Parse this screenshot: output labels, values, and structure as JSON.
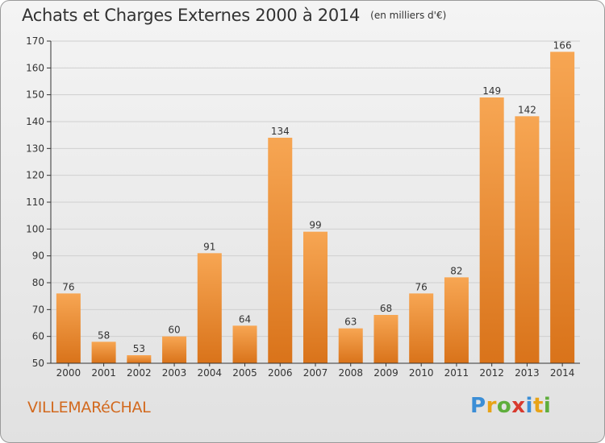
{
  "header": {
    "title": "Achats et Charges Externes 2000 à 2014",
    "subtitle": "(en milliers d'€)"
  },
  "footer": {
    "commune": "VILLEMARéCHAL",
    "brand": "Proxiti"
  },
  "colors": {
    "bar_top": "#f7a653",
    "bar_bottom": "#d9731a",
    "grid": "#cfcfcf",
    "axis": "#333333",
    "commune_text": "#d2691e"
  },
  "chart_data": {
    "type": "bar",
    "title": "Achats et Charges Externes 2000 à 2014",
    "subtitle": "(en milliers d'€)",
    "categories": [
      "2000",
      "2001",
      "2002",
      "2003",
      "2004",
      "2005",
      "2006",
      "2007",
      "2008",
      "2009",
      "2010",
      "2011",
      "2012",
      "2013",
      "2014"
    ],
    "values": [
      76,
      58,
      53,
      60,
      91,
      64,
      134,
      99,
      63,
      68,
      76,
      82,
      149,
      142,
      166
    ],
    "ylim": [
      50,
      170
    ],
    "yticks": [
      50,
      60,
      70,
      80,
      90,
      100,
      110,
      120,
      130,
      140,
      150,
      160,
      170
    ],
    "xlabel": "",
    "ylabel": "",
    "grid": true,
    "legend": "none",
    "data_labels": true
  }
}
